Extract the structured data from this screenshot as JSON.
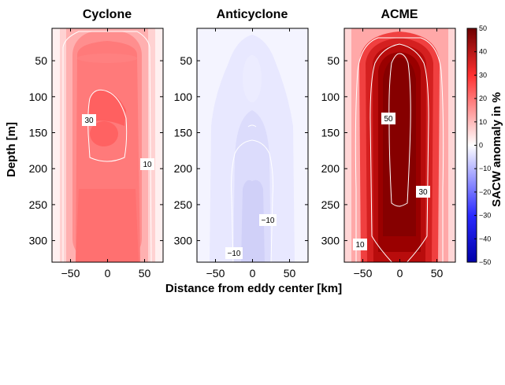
{
  "chart_data": {
    "type": "heatmap",
    "shared": {
      "xlabel": "Distance from eddy center [km]",
      "ylabel": "Depth [m]",
      "xlim": [
        -75,
        75
      ],
      "ylim": [
        330,
        5
      ],
      "xticks": [
        -50,
        0,
        50
      ],
      "xtick_labels": [
        "−50",
        "0",
        "50"
      ],
      "yticks": [
        50,
        100,
        150,
        200,
        250,
        300
      ],
      "ytick_labels": [
        "50",
        "100",
        "150",
        "200",
        "250",
        "300"
      ]
    },
    "colorbar": {
      "label": "SACW anomaly in %",
      "range": [
        -50,
        50
      ],
      "ticks": [
        -50,
        -40,
        -30,
        -20,
        -10,
        0,
        10,
        20,
        30,
        40,
        50
      ],
      "tick_labels": [
        "−50",
        "−40",
        "−30",
        "−20",
        "−10",
        "0",
        "10",
        "20",
        "30",
        "40",
        "50"
      ],
      "low_color": "#0000a8",
      "mid_color": "#ffffff",
      "high_color": "#6e0000"
    },
    "panels": [
      {
        "title": "Cyclone",
        "approx_max_anomaly": 40,
        "contours": [
          {
            "level": 10,
            "label": "10"
          },
          {
            "level": 30,
            "label": "30"
          }
        ]
      },
      {
        "title": "Anticyclone",
        "approx_min_anomaly": -15,
        "contours": [
          {
            "level": -10,
            "label": "−10"
          },
          {
            "level": -10,
            "label": "−10"
          }
        ]
      },
      {
        "title": "ACME",
        "approx_max_anomaly": 50,
        "contours": [
          {
            "level": 10,
            "label": "10"
          },
          {
            "level": 30,
            "label": "30"
          },
          {
            "level": 50,
            "label": "50"
          }
        ]
      }
    ]
  }
}
